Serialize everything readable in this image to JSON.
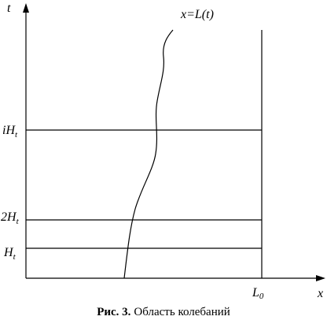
{
  "axes": {
    "y_label": "t",
    "x_label": "x"
  },
  "curve_label": "x=L(t)",
  "levels": [
    {
      "main": "iH",
      "sub": "t"
    },
    {
      "main": "2H",
      "sub": "t"
    },
    {
      "main": "H",
      "sub": "t"
    }
  ],
  "boundary_label": {
    "main": "L",
    "sub": "0"
  },
  "caption": {
    "number": "Рис. 3.",
    "text": "Область колебаний"
  }
}
